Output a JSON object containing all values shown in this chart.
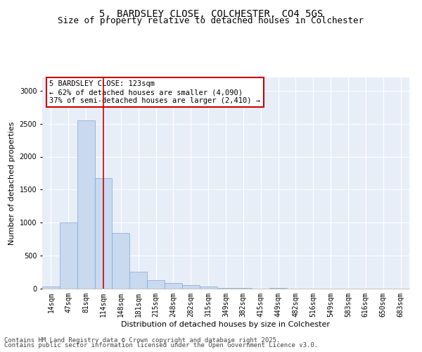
{
  "title_line1": "5, BARDSLEY CLOSE, COLCHESTER, CO4 5GS",
  "title_line2": "Size of property relative to detached houses in Colchester",
  "xlabel": "Distribution of detached houses by size in Colchester",
  "ylabel": "Number of detached properties",
  "categories": [
    "14sqm",
    "47sqm",
    "81sqm",
    "114sqm",
    "148sqm",
    "181sqm",
    "215sqm",
    "248sqm",
    "282sqm",
    "315sqm",
    "349sqm",
    "382sqm",
    "415sqm",
    "449sqm",
    "482sqm",
    "516sqm",
    "549sqm",
    "583sqm",
    "616sqm",
    "650sqm",
    "683sqm"
  ],
  "values": [
    30,
    1000,
    2550,
    1680,
    840,
    260,
    130,
    90,
    55,
    30,
    10,
    10,
    0,
    10,
    0,
    0,
    0,
    0,
    0,
    0,
    0
  ],
  "bar_color": "#c9d9f0",
  "bar_edgecolor": "#7fa8d0",
  "vline_x_index": 3,
  "vline_color": "#cc0000",
  "annotation_line1": "5 BARDSLEY CLOSE: 123sqm",
  "annotation_line2": "← 62% of detached houses are smaller (4,090)",
  "annotation_line3": "37% of semi-detached houses are larger (2,410) →",
  "ylim": [
    0,
    3200
  ],
  "yticks": [
    0,
    500,
    1000,
    1500,
    2000,
    2500,
    3000
  ],
  "background_color": "#e8eef8",
  "footer_line1": "Contains HM Land Registry data © Crown copyright and database right 2025.",
  "footer_line2": "Contains public sector information licensed under the Open Government Licence v3.0.",
  "title_fontsize": 10,
  "subtitle_fontsize": 9,
  "axis_label_fontsize": 8,
  "tick_fontsize": 7,
  "annotation_fontsize": 7.5,
  "footer_fontsize": 6.5
}
